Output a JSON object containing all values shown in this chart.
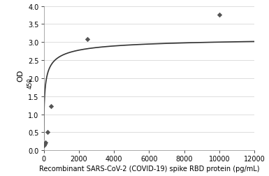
{
  "scatter_x": [
    25,
    50,
    100,
    200,
    400,
    2500,
    10000
  ],
  "scatter_y": [
    0.15,
    0.18,
    0.22,
    0.5,
    1.23,
    3.08,
    3.75
  ],
  "scatter_color": "#555555",
  "scatter_marker": "D",
  "scatter_size": 14,
  "curve_color": "#333333",
  "curve_linewidth": 1.2,
  "xlim": [
    0,
    12000
  ],
  "ylim": [
    0,
    4
  ],
  "xticks": [
    0,
    2000,
    4000,
    6000,
    8000,
    10000,
    12000
  ],
  "yticks": [
    0,
    0.5,
    1.0,
    1.5,
    2.0,
    2.5,
    3.0,
    3.5,
    4.0
  ],
  "xlabel": "Recombinant SARS-CoV-2 (COVID-19) spike RBD protein (pg/mL)",
  "ylabel_main": "OD",
  "ylabel_sub": "450",
  "xlabel_fontsize": 7.0,
  "ylabel_fontsize": 8,
  "ylabel_sub_fontsize": 6,
  "tick_fontsize": 7,
  "background_color": "#ffffff",
  "grid_color": "#d0d0d0",
  "hill_Bmax": 3.18,
  "hill_K": 60,
  "hill_n": 0.55
}
